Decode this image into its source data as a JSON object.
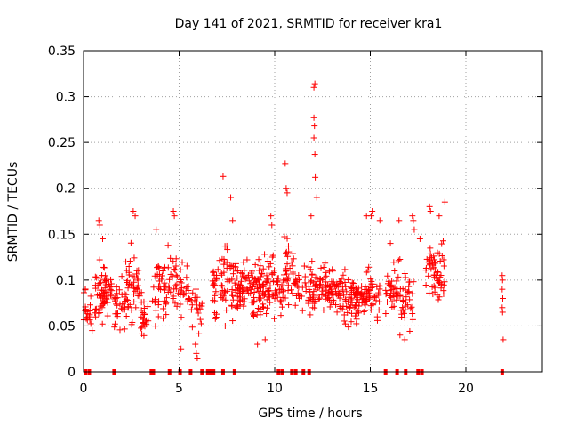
{
  "chart_data": {
    "type": "scatter",
    "title": "Day 141 of 2021, SRMTID for receiver kra1",
    "xlabel": "GPS time / hours",
    "ylabel": "SRMTID / TECUs",
    "xlim": [
      0,
      24
    ],
    "ylim": [
      0,
      0.35
    ],
    "x_ticks": [
      0,
      5,
      10,
      15,
      20
    ],
    "x_tick_labels": [
      "0",
      "5",
      "10",
      "15",
      "20"
    ],
    "y_ticks": [
      0,
      0.05,
      0.1,
      0.15,
      0.2,
      0.25,
      0.3,
      0.35
    ],
    "y_tick_labels": [
      "0",
      "0.05",
      "0.1",
      "0.15",
      "0.2",
      "0.25",
      "0.3",
      "0.35"
    ],
    "grid": true,
    "marker": "+",
    "series": [
      {
        "name": "SRMTID",
        "color": "#ff0000",
        "clusters": [
          {
            "x": [
              0.0,
              0.4
            ],
            "y": [
              0.035,
              0.105
            ],
            "n": 18
          },
          {
            "x": [
              0.5,
              1.0
            ],
            "y": [
              0.035,
              0.13
            ],
            "n": 30
          },
          {
            "x": [
              1.0,
              1.5
            ],
            "y": [
              0.05,
              0.13
            ],
            "n": 34
          },
          {
            "x": [
              1.6,
              2.2
            ],
            "y": [
              0.035,
              0.115
            ],
            "n": 32
          },
          {
            "x": [
              2.2,
              2.9
            ],
            "y": [
              0.035,
              0.15
            ],
            "n": 44
          },
          {
            "x": [
              2.9,
              3.4
            ],
            "y": [
              0.03,
              0.1
            ],
            "n": 26
          },
          {
            "x": [
              3.6,
              4.1
            ],
            "y": [
              0.04,
              0.14
            ],
            "n": 24
          },
          {
            "x": [
              4.1,
              4.9
            ],
            "y": [
              0.04,
              0.15
            ],
            "n": 40
          },
          {
            "x": [
              4.9,
              5.5
            ],
            "y": [
              0.04,
              0.13
            ],
            "n": 26
          },
          {
            "x": [
              5.5,
              6.2
            ],
            "y": [
              0.035,
              0.1
            ],
            "n": 22
          },
          {
            "x": [
              6.7,
              7.3
            ],
            "y": [
              0.045,
              0.145
            ],
            "n": 32
          },
          {
            "x": [
              7.3,
              8.0
            ],
            "y": [
              0.04,
              0.15
            ],
            "n": 44
          },
          {
            "x": [
              8.0,
              8.7
            ],
            "y": [
              0.05,
              0.13
            ],
            "n": 46
          },
          {
            "x": [
              8.7,
              9.4
            ],
            "y": [
              0.045,
              0.135
            ],
            "n": 54
          },
          {
            "x": [
              9.4,
              10.0
            ],
            "y": [
              0.045,
              0.15
            ],
            "n": 42
          },
          {
            "x": [
              10.0,
              10.5
            ],
            "y": [
              0.05,
              0.12
            ],
            "n": 24
          },
          {
            "x": [
              10.5,
              11.0
            ],
            "y": [
              0.06,
              0.16
            ],
            "n": 30
          },
          {
            "x": [
              11.0,
              11.8
            ],
            "y": [
              0.05,
              0.13
            ],
            "n": 32
          },
          {
            "x": [
              11.8,
              12.4
            ],
            "y": [
              0.05,
              0.13
            ],
            "n": 38
          },
          {
            "x": [
              12.4,
              13.2
            ],
            "y": [
              0.045,
              0.135
            ],
            "n": 50
          },
          {
            "x": [
              13.2,
              14.0
            ],
            "y": [
              0.04,
              0.12
            ],
            "n": 50
          },
          {
            "x": [
              14.0,
              14.8
            ],
            "y": [
              0.045,
              0.115
            ],
            "n": 56
          },
          {
            "x": [
              14.8,
              15.5
            ],
            "y": [
              0.05,
              0.13
            ],
            "n": 40
          },
          {
            "x": [
              15.8,
              16.6
            ],
            "y": [
              0.05,
              0.13
            ],
            "n": 40
          },
          {
            "x": [
              16.6,
              17.3
            ],
            "y": [
              0.04,
              0.12
            ],
            "n": 32
          },
          {
            "x": [
              17.9,
              18.5
            ],
            "y": [
              0.06,
              0.16
            ],
            "n": 34
          },
          {
            "x": [
              18.5,
              18.9
            ],
            "y": [
              0.055,
              0.16
            ],
            "n": 26
          }
        ],
        "points": [
          [
            0.3,
            0.06
          ],
          [
            0.45,
            0.045
          ],
          [
            0.8,
            0.165
          ],
          [
            0.85,
            0.16
          ],
          [
            1.0,
            0.145
          ],
          [
            2.6,
            0.175
          ],
          [
            2.7,
            0.17
          ],
          [
            3.8,
            0.155
          ],
          [
            4.7,
            0.175
          ],
          [
            4.75,
            0.17
          ],
          [
            5.1,
            0.025
          ],
          [
            5.9,
            0.02
          ],
          [
            5.95,
            0.015
          ],
          [
            5.85,
            0.03
          ],
          [
            7.3,
            0.213
          ],
          [
            7.7,
            0.19
          ],
          [
            7.8,
            0.165
          ],
          [
            9.1,
            0.03
          ],
          [
            9.5,
            0.035
          ],
          [
            9.8,
            0.17
          ],
          [
            9.85,
            0.16
          ],
          [
            10.55,
            0.227
          ],
          [
            10.6,
            0.2
          ],
          [
            10.65,
            0.195
          ],
          [
            11.9,
            0.17
          ],
          [
            12.05,
            0.31
          ],
          [
            12.1,
            0.314
          ],
          [
            12.05,
            0.277
          ],
          [
            12.08,
            0.268
          ],
          [
            12.05,
            0.255
          ],
          [
            12.1,
            0.237
          ],
          [
            12.12,
            0.212
          ],
          [
            12.2,
            0.19
          ],
          [
            14.8,
            0.17
          ],
          [
            15.05,
            0.17
          ],
          [
            15.1,
            0.175
          ],
          [
            15.5,
            0.165
          ],
          [
            16.5,
            0.165
          ],
          [
            16.05,
            0.14
          ],
          [
            17.2,
            0.17
          ],
          [
            17.25,
            0.165
          ],
          [
            17.3,
            0.155
          ],
          [
            17.6,
            0.145
          ],
          [
            18.1,
            0.18
          ],
          [
            18.15,
            0.175
          ],
          [
            18.9,
            0.185
          ],
          [
            18.6,
            0.17
          ],
          [
            16.8,
            0.035
          ],
          [
            16.55,
            0.04
          ],
          [
            21.9,
            0.105
          ],
          [
            21.92,
            0.1
          ],
          [
            21.9,
            0.09
          ],
          [
            21.93,
            0.08
          ],
          [
            21.9,
            0.07
          ],
          [
            21.92,
            0.065
          ],
          [
            21.95,
            0.035
          ]
        ]
      }
    ],
    "zero_points_x": [
      0.1,
      0.3,
      1.6,
      3.55,
      3.65,
      4.5,
      5.05,
      5.6,
      6.2,
      6.5,
      6.65,
      6.8,
      7.3,
      7.9,
      10.2,
      10.4,
      10.9,
      11.1,
      11.5,
      11.8,
      15.8,
      16.4,
      16.85,
      17.5,
      17.7,
      21.9
    ]
  }
}
